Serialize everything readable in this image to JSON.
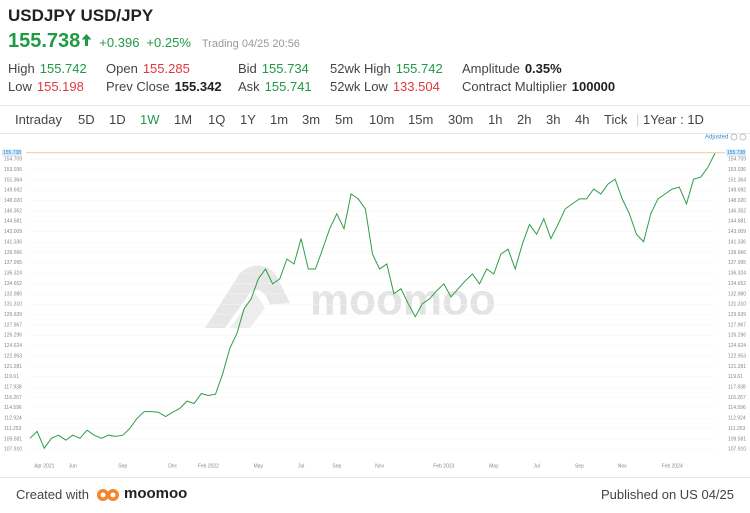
{
  "header": {
    "symbol": "USDJPY",
    "name": "USD/JPY",
    "price": "155.738",
    "change": "+0.396",
    "change_pct": "+0.25%",
    "status": "Trading 04/25 20:56"
  },
  "stats": [
    [
      {
        "label": "High",
        "value": "155.742",
        "tone": "up"
      },
      {
        "label": "Open",
        "value": "155.285",
        "tone": "down"
      },
      {
        "label": "Bid",
        "value": "155.734",
        "tone": "up"
      },
      {
        "label": "52wk High",
        "value": "155.742",
        "tone": "up"
      },
      {
        "label": "Amplitude",
        "value": "0.35%",
        "tone": "neutral"
      }
    ],
    [
      {
        "label": "Low",
        "value": "155.198",
        "tone": "down"
      },
      {
        "label": "Prev Close",
        "value": "155.342",
        "tone": "neutral"
      },
      {
        "label": "Ask",
        "value": "155.741",
        "tone": "up"
      },
      {
        "label": "52wk Low",
        "value": "133.504",
        "tone": "down"
      },
      {
        "label": "Contract Multiplier",
        "value": "100000",
        "tone": "neutral"
      }
    ]
  ],
  "tabs": {
    "items": [
      "Intraday",
      "5D",
      "1D",
      "1W",
      "1M",
      "1Q",
      "1Y",
      "1m",
      "3m",
      "5m",
      "10m",
      "15m",
      "30m",
      "1h",
      "2h",
      "3h",
      "4h",
      "Tick"
    ],
    "active": 3,
    "range": "1Year : 1D"
  },
  "chart": {
    "type": "line",
    "adjusted_label": "Adjusted",
    "watermark": "moomoo",
    "color": "#2e9e47",
    "last_price": 155.738,
    "last_price_color": "#f5a35c",
    "ylim": [
      107.0,
      157.0
    ],
    "yticks": [
      {
        "value": 107.91,
        "label": "107.910"
      },
      109.581,
      111.253,
      112.924,
      114.596,
      116.267,
      117.938,
      119.61,
      121.281,
      122.953,
      124.624,
      126.296,
      127.967,
      129.639,
      {
        "value": 131.31,
        "label": "131.310"
      },
      {
        "value": 132.98,
        "label": "132.980"
      },
      134.652,
      136.324,
      137.995,
      139.666,
      141.336,
      143.009,
      144.681,
      146.352,
      {
        "value": 148.02,
        "label": "148.020"
      },
      149.692,
      151.364,
      153.036,
      154.709
    ],
    "categories": [
      null,
      null,
      "Apr 2021",
      null,
      null,
      null,
      "Jun",
      null,
      null,
      null,
      null,
      null,
      null,
      "Sep",
      null,
      null,
      null,
      null,
      null,
      null,
      "Dec",
      null,
      null,
      null,
      null,
      "Feb 2022",
      null,
      null,
      null,
      null,
      null,
      null,
      "May",
      null,
      null,
      null,
      null,
      null,
      "Jul",
      null,
      null,
      null,
      null,
      "Sep",
      null,
      null,
      null,
      null,
      null,
      "Nov",
      null,
      null,
      null,
      null,
      null,
      null,
      null,
      null,
      "Feb 2023",
      null,
      null,
      null,
      null,
      null,
      null,
      "May",
      null,
      null,
      null,
      null,
      null,
      "Jul",
      null,
      null,
      null,
      null,
      null,
      "Sep",
      null,
      null,
      null,
      null,
      null,
      "Nov",
      null,
      null,
      null,
      null,
      null,
      null,
      "Feb 2024",
      null,
      null,
      null,
      null,
      null,
      null
    ],
    "values": [
      109.7,
      110.8,
      108.1,
      109.7,
      110.2,
      109.4,
      110.2,
      109.7,
      111.0,
      110.2,
      109.7,
      110.2,
      110.0,
      110.2,
      111.3,
      112.9,
      114.0,
      114.0,
      113.9,
      113.2,
      113.9,
      114.5,
      115.7,
      115.3,
      116.9,
      116.6,
      116.8,
      120.1,
      124.2,
      126.6,
      130.6,
      132.2,
      135.4,
      137.0,
      134.6,
      135.4,
      138.6,
      137.8,
      141.9,
      137.0,
      137.0,
      140.2,
      143.5,
      145.9,
      143.5,
      149.1,
      148.3,
      146.7,
      139.4,
      137.0,
      137.8,
      133.0,
      133.8,
      131.4,
      129.3,
      131.4,
      132.2,
      133.5,
      134.6,
      132.5,
      133.8,
      135.1,
      136.2,
      134.6,
      137.0,
      136.2,
      139.4,
      140.2,
      137.0,
      141.0,
      144.2,
      142.6,
      145.1,
      141.9,
      144.2,
      146.7,
      147.5,
      148.3,
      148.3,
      149.9,
      149.1,
      150.7,
      151.5,
      148.3,
      145.9,
      142.6,
      141.4,
      145.9,
      148.3,
      149.1,
      149.9,
      150.2,
      147.5,
      151.5,
      151.8,
      153.4,
      155.7
    ]
  },
  "footer": {
    "created": "Created with",
    "brand": "moomoo",
    "published": "Published on US 04/25"
  }
}
